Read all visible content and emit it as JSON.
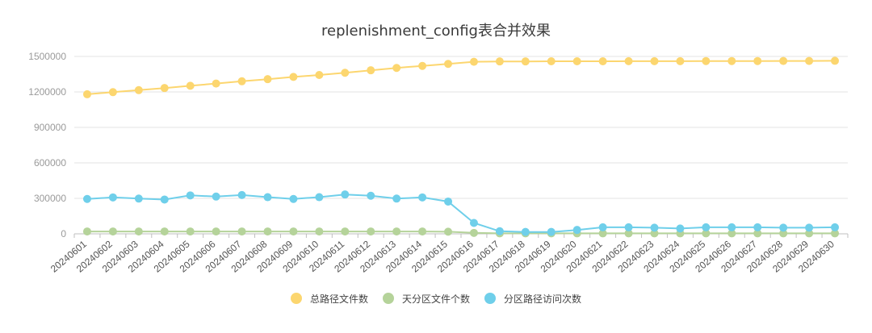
{
  "chart_data": {
    "type": "line",
    "title": "replenishment_config表合并效果",
    "ylim": [
      0,
      1500000
    ],
    "y_ticks": [
      0,
      300000,
      600000,
      900000,
      1200000,
      1500000
    ],
    "y_tick_labels": [
      "0",
      "300000",
      "600000",
      "900000",
      "1200000",
      "1500000"
    ],
    "grid": true,
    "legend_position": "bottom",
    "categories": [
      "20240601",
      "20240602",
      "20240603",
      "20240604",
      "20240605",
      "20240606",
      "20240607",
      "20240608",
      "20240609",
      "20240610",
      "20240611",
      "20240612",
      "20240613",
      "20240614",
      "20240615",
      "20240616",
      "20240617",
      "20240618",
      "20240619",
      "20240620",
      "20240621",
      "20240622",
      "20240623",
      "20240624",
      "20240625",
      "20240626",
      "20240627",
      "20240628",
      "20240629",
      "20240630"
    ],
    "series": [
      {
        "name": "总路径文件数",
        "color": "#FCD66F",
        "values": [
          1180000,
          1198000,
          1215000,
          1233000,
          1252000,
          1271000,
          1290000,
          1308000,
          1327000,
          1343000,
          1362000,
          1383000,
          1403000,
          1420000,
          1437000,
          1455000,
          1458000,
          1458000,
          1459000,
          1459000,
          1459000,
          1460000,
          1460000,
          1460000,
          1461000,
          1461000,
          1461000,
          1462000,
          1462000,
          1463000
        ]
      },
      {
        "name": "天分区文件个数",
        "color": "#B5D39A",
        "values": [
          20000,
          20000,
          20000,
          20000,
          20000,
          20000,
          20000,
          20000,
          20000,
          20000,
          20000,
          20000,
          20000,
          20000,
          18000,
          8000,
          4000,
          4000,
          4000,
          4000,
          4000,
          4000,
          4000,
          4000,
          4000,
          4000,
          4000,
          4000,
          4000,
          4000
        ]
      },
      {
        "name": "分区路径访问次数",
        "color": "#6FCFEA",
        "values": [
          295000,
          308000,
          298000,
          290000,
          325000,
          315000,
          328000,
          310000,
          295000,
          310000,
          333000,
          322000,
          298000,
          308000,
          273000,
          92000,
          22000,
          16000,
          16000,
          33000,
          55000,
          55000,
          52000,
          45000,
          55000,
          55000,
          55000,
          52000,
          52000,
          55000
        ]
      }
    ]
  }
}
